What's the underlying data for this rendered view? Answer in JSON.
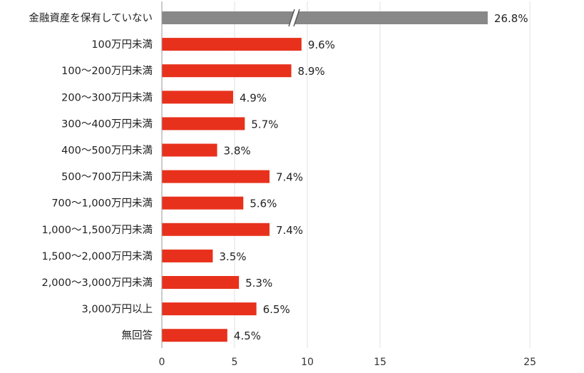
{
  "chart_data": {
    "type": "bar",
    "orientation": "horizontal",
    "title": "",
    "xlabel": "",
    "ylabel": "",
    "categories": [
      "金融資産を保有していない",
      "100万円未満",
      "100～200万円未満",
      "200～300万円未満",
      "300～400万円未満",
      "400～500万円未満",
      "500～700万円未満",
      "700～1,000万円未満",
      "1,000～1,500万円未満",
      "1,500～2,000万円未満",
      "2,000～3,000万円未満",
      "3,000万円以上",
      "無回答"
    ],
    "values": [
      26.8,
      9.6,
      8.9,
      4.9,
      5.7,
      3.8,
      7.4,
      5.6,
      7.4,
      3.5,
      5.3,
      6.5,
      4.5
    ],
    "value_labels": [
      "26.8%",
      "9.6%",
      "8.9%",
      "4.9%",
      "5.7%",
      "3.8%",
      "7.4%",
      "5.6%",
      "7.4%",
      "3.5%",
      "5.3%",
      "6.5%",
      "4.5%"
    ],
    "x_ticks": [
      0,
      5,
      10,
      15,
      25
    ],
    "x_tick_labels": [
      "0",
      "5",
      "10",
      "15",
      "25"
    ],
    "axis_break": {
      "from": 15,
      "to": 25
    },
    "grid": true,
    "colors": {
      "highlight": "#888888",
      "default": "#e8311c"
    },
    "highlight_index": 0
  }
}
